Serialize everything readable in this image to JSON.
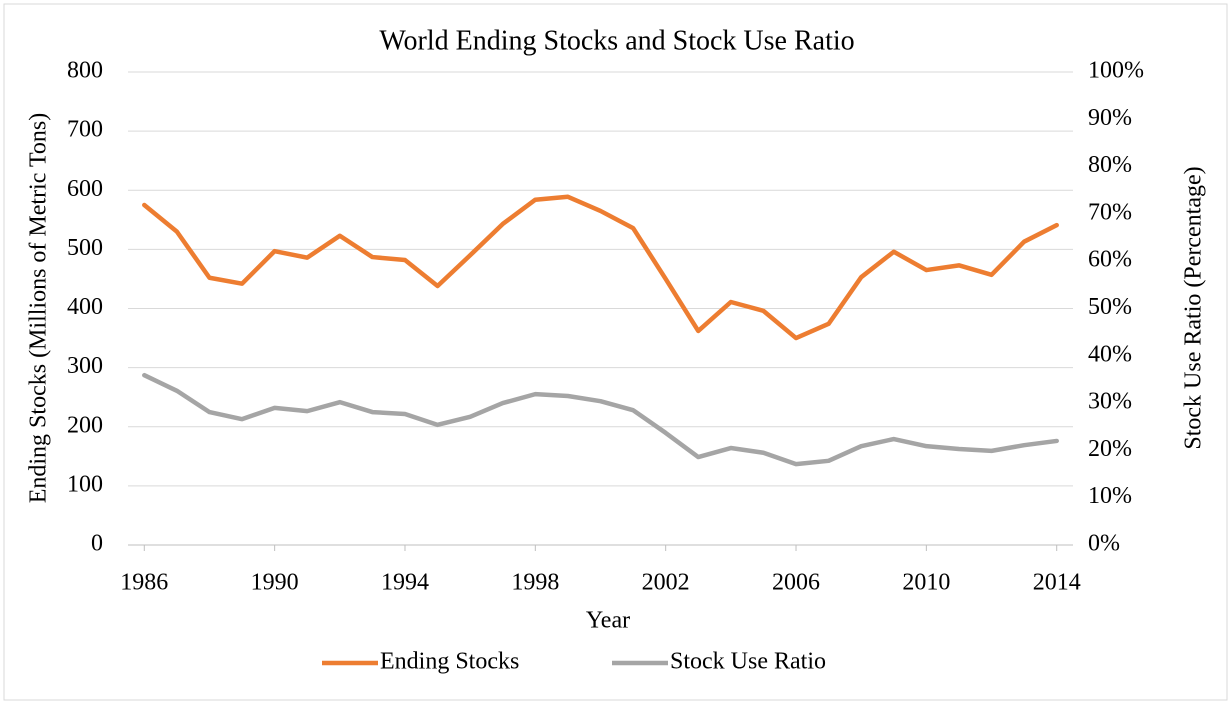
{
  "chart_data": {
    "type": "line",
    "title": "World Ending Stocks and Stock Use Ratio",
    "xlabel": "Year",
    "ylabel": "Ending Stocks (Millions of Metric Tons)",
    "y2label": "Stock Use Ratio (Percentage)",
    "x": [
      1986,
      1987,
      1988,
      1989,
      1990,
      1991,
      1992,
      1993,
      1994,
      1995,
      1996,
      1997,
      1998,
      1999,
      2000,
      2001,
      2002,
      2003,
      2004,
      2005,
      2006,
      2007,
      2008,
      2009,
      2010,
      2011,
      2012,
      2013,
      2014
    ],
    "xlim": [
      1985.5,
      2014.5
    ],
    "xticks": [
      1986,
      1990,
      1994,
      1998,
      2002,
      2006,
      2010,
      2014
    ],
    "ylim": [
      0,
      800
    ],
    "yticks": [
      0,
      100,
      200,
      300,
      400,
      500,
      600,
      700,
      800
    ],
    "y2lim": [
      0,
      100
    ],
    "y2ticks": [
      {
        "value": 0,
        "label": "0%"
      },
      {
        "value": 10,
        "label": "10%"
      },
      {
        "value": 20,
        "label": "20%"
      },
      {
        "value": 30,
        "label": "30%"
      },
      {
        "value": 40,
        "label": "40%"
      },
      {
        "value": 50,
        "label": "50%"
      },
      {
        "value": 60,
        "label": "60%"
      },
      {
        "value": 70,
        "label": "70%"
      },
      {
        "value": 80,
        "label": "80%"
      },
      {
        "value": 90,
        "label": "90%"
      },
      {
        "value": 100,
        "label": "100%"
      }
    ],
    "grid": true,
    "legend": "bottom",
    "series": [
      {
        "name": "Ending Stocks",
        "color": "#ed7d31",
        "values": [
          575,
          530,
          452,
          442,
          497,
          486,
          523,
          487,
          482,
          438,
          490,
          543,
          584,
          589,
          565,
          536,
          450,
          362,
          411,
          396,
          350,
          374,
          453,
          496,
          465,
          473,
          457,
          513,
          541
        ]
      },
      {
        "name": "Stock Use Ratio",
        "color": "#a5a5a5",
        "axis": "y2",
        "values": [
          35.9,
          32.6,
          28.1,
          26.6,
          29.0,
          28.3,
          30.2,
          28.1,
          27.7,
          25.4,
          27.1,
          30.0,
          31.9,
          31.5,
          30.4,
          28.5,
          23.7,
          18.6,
          20.5,
          19.5,
          17.1,
          17.8,
          20.9,
          22.4,
          20.9,
          20.3,
          19.9,
          21.1,
          22.0
        ]
      }
    ]
  }
}
